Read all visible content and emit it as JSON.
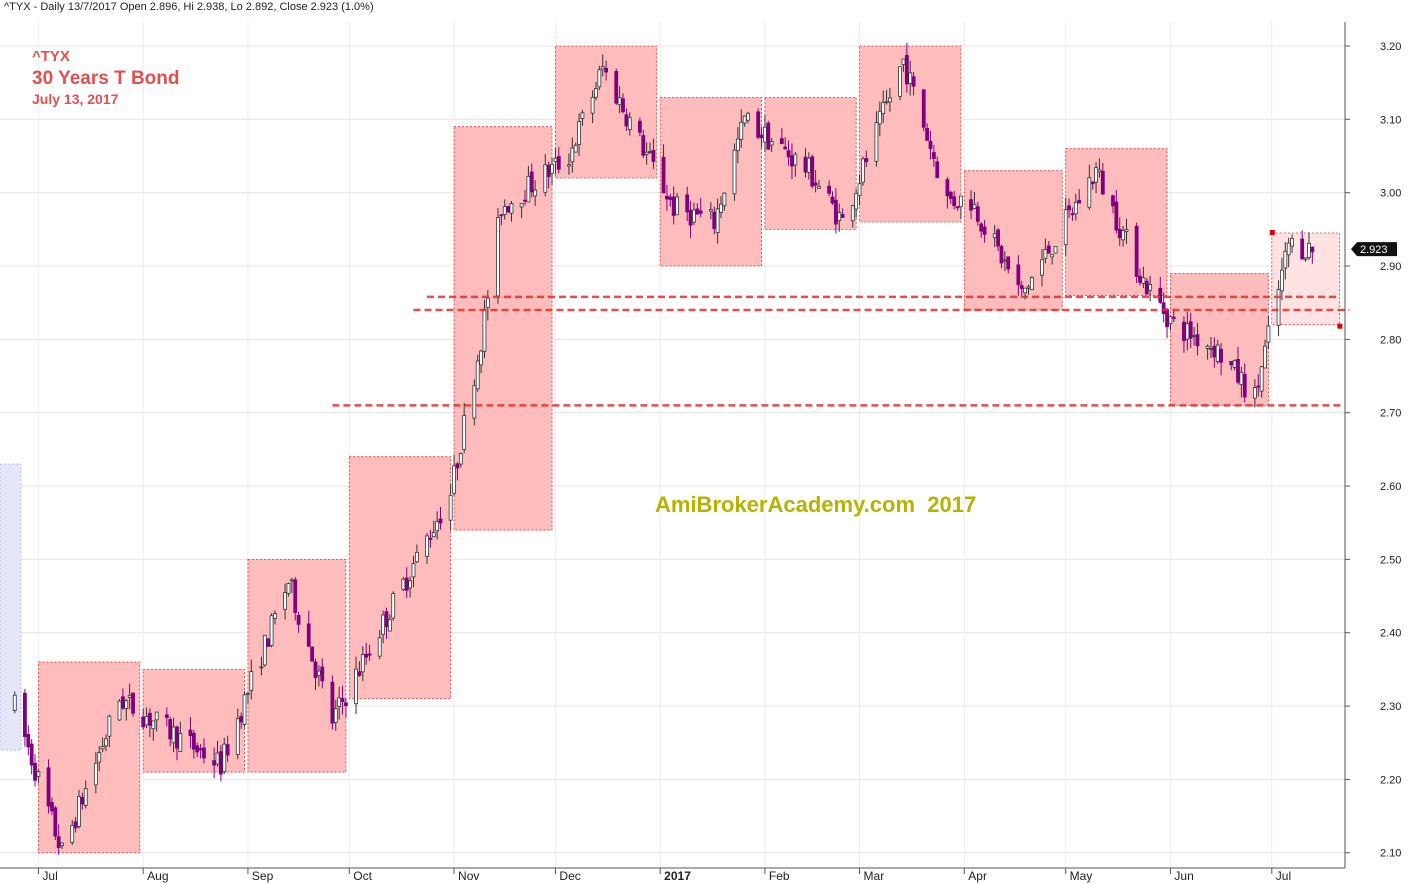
{
  "header": {
    "text": "^TYX - Daily 13/7/2017 Open 2.896, Hi 2.938, Lo 2.892, Close 2.923 (1.0%)"
  },
  "annotations": {
    "ticker": "^TYX",
    "title": "30 Years T Bond",
    "date": "July 13, 2017",
    "watermark": "AmiBrokerAcademy.com  2017"
  },
  "colors": {
    "box_fill": "#ffbcbc",
    "box_border": "#e03030",
    "bear_candle": "#800080",
    "bull_candle": "#ffffff",
    "support_line": "#e03030",
    "last_box_fill": "#ffe3e3",
    "first_box_fill": "#e6e6fa"
  },
  "chart_data": {
    "type": "candlestick",
    "symbol": "^TYX",
    "interval": "Daily",
    "ylim": [
      2.08,
      3.22
    ],
    "y_ticks": [
      "2.10",
      "2.20",
      "2.30",
      "2.40",
      "2.50",
      "2.60",
      "2.70",
      "2.80",
      "2.90",
      "3.00",
      "3.10",
      "3.20"
    ],
    "x_labels": [
      {
        "label": "Jul",
        "date": "2016-07-01"
      },
      {
        "label": "Aug",
        "date": "2016-08-01"
      },
      {
        "label": "Sep",
        "date": "2016-09-01"
      },
      {
        "label": "Oct",
        "date": "2016-10-01"
      },
      {
        "label": "Nov",
        "date": "2016-11-01"
      },
      {
        "label": "Dec",
        "date": "2016-12-01"
      },
      {
        "label": "2017",
        "date": "2017-01-01",
        "bold": true
      },
      {
        "label": "Feb",
        "date": "2017-02-01"
      },
      {
        "label": "Mar",
        "date": "2017-03-01"
      },
      {
        "label": "Apr",
        "date": "2017-04-01"
      },
      {
        "label": "May",
        "date": "2017-05-01"
      },
      {
        "label": "Jun",
        "date": "2017-06-01"
      },
      {
        "label": "Jul",
        "date": "2017-07-01"
      }
    ],
    "last_price": "2.923",
    "last_ohlc": {
      "open": 2.896,
      "high": 2.938,
      "low": 2.892,
      "close": 2.923
    },
    "monthly_boxes": [
      {
        "start": "2016-06-01",
        "end": "2016-06-30",
        "high": 2.63,
        "low": 2.24,
        "style": "prior"
      },
      {
        "start": "2016-07-01",
        "end": "2016-07-31",
        "high": 2.36,
        "low": 2.1
      },
      {
        "start": "2016-08-01",
        "end": "2016-08-31",
        "high": 2.35,
        "low": 2.21
      },
      {
        "start": "2016-09-01",
        "end": "2016-09-30",
        "high": 2.5,
        "low": 2.21
      },
      {
        "start": "2016-10-01",
        "end": "2016-10-31",
        "high": 2.64,
        "low": 2.31
      },
      {
        "start": "2016-11-01",
        "end": "2016-11-30",
        "high": 3.09,
        "low": 2.54
      },
      {
        "start": "2016-12-01",
        "end": "2016-12-31",
        "high": 3.2,
        "low": 3.02
      },
      {
        "start": "2017-01-01",
        "end": "2017-01-31",
        "high": 3.13,
        "low": 2.9
      },
      {
        "start": "2017-02-01",
        "end": "2017-02-28",
        "high": 3.13,
        "low": 2.95
      },
      {
        "start": "2017-03-01",
        "end": "2017-03-31",
        "high": 3.2,
        "low": 2.96
      },
      {
        "start": "2017-04-01",
        "end": "2017-04-30",
        "high": 3.03,
        "low": 2.84
      },
      {
        "start": "2017-05-01",
        "end": "2017-05-31",
        "high": 3.06,
        "low": 2.86
      },
      {
        "start": "2017-06-01",
        "end": "2017-06-30",
        "high": 2.89,
        "low": 2.71
      },
      {
        "start": "2017-07-01",
        "end": "2017-07-21",
        "high": 2.945,
        "low": 2.82,
        "style": "current"
      }
    ],
    "support_lines": [
      {
        "level": 2.858,
        "from": "2016-10-24",
        "to": "2017-07-20"
      },
      {
        "level": 2.84,
        "from": "2016-10-20",
        "to": "2017-07-24"
      },
      {
        "level": 2.71,
        "from": "2016-09-26",
        "to": "2017-07-22"
      }
    ],
    "anchors": [
      {
        "date": "2016-06-24",
        "price": 2.3
      },
      {
        "date": "2016-07-08",
        "price": 2.1
      },
      {
        "date": "2016-07-25",
        "price": 2.31
      },
      {
        "date": "2016-08-24",
        "price": 2.22
      },
      {
        "date": "2016-09-13",
        "price": 2.47
      },
      {
        "date": "2016-09-26",
        "price": 2.28
      },
      {
        "date": "2016-10-31",
        "price": 2.59
      },
      {
        "date": "2016-11-09",
        "price": 2.8
      },
      {
        "date": "2016-11-15",
        "price": 2.98
      },
      {
        "date": "2016-12-05",
        "price": 3.05
      },
      {
        "date": "2016-12-15",
        "price": 3.17
      },
      {
        "date": "2017-01-05",
        "price": 2.98
      },
      {
        "date": "2017-01-17",
        "price": 2.96
      },
      {
        "date": "2017-01-26",
        "price": 3.1
      },
      {
        "date": "2017-02-14",
        "price": 3.03
      },
      {
        "date": "2017-02-24",
        "price": 2.96
      },
      {
        "date": "2017-03-14",
        "price": 3.18
      },
      {
        "date": "2017-03-27",
        "price": 2.99
      },
      {
        "date": "2017-04-03",
        "price": 2.99
      },
      {
        "date": "2017-04-18",
        "price": 2.86
      },
      {
        "date": "2017-05-10",
        "price": 3.03
      },
      {
        "date": "2017-05-24",
        "price": 2.88
      },
      {
        "date": "2017-06-02",
        "price": 2.82
      },
      {
        "date": "2017-06-14",
        "price": 2.79
      },
      {
        "date": "2017-06-26",
        "price": 2.72
      },
      {
        "date": "2017-07-06",
        "price": 2.93
      },
      {
        "date": "2017-07-13",
        "price": 2.923
      }
    ]
  }
}
